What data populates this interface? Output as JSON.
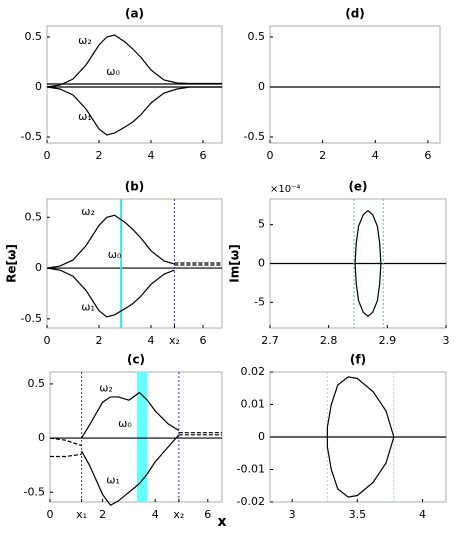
{
  "figure": {
    "xlabel": "x"
  },
  "chart_data": [
    {
      "type": "line",
      "title": "(a)",
      "xlim": [
        0,
        6.73
      ],
      "ylim": [
        -0.56,
        0.61
      ],
      "xticks": [
        0,
        2,
        4,
        6
      ],
      "yticks": [
        -0.5,
        0,
        0.5
      ],
      "hlines": [
        {
          "y": 0,
          "color": "#000000"
        },
        {
          "y": 0.03,
          "color": "#000000"
        }
      ],
      "series": [
        {
          "color": "#000000",
          "dash": false,
          "x": [
            0,
            0.5,
            1,
            1.5,
            2,
            2.3,
            2.6,
            3,
            3.3,
            3.6,
            4,
            4.5,
            5,
            5.5,
            6,
            6.73
          ],
          "values": [
            0.0,
            0.02,
            0.08,
            0.22,
            0.42,
            0.5,
            0.52,
            0.45,
            0.38,
            0.3,
            0.17,
            0.07,
            0.04,
            0.035,
            0.035,
            0.035
          ]
        },
        {
          "color": "#000000",
          "dash": false,
          "x": [
            0,
            0.5,
            1,
            1.5,
            2,
            2.3,
            2.6,
            3,
            3.3,
            3.6,
            4,
            4.5,
            5,
            5.5,
            6,
            6.73
          ],
          "values": [
            0.0,
            -0.02,
            -0.08,
            -0.22,
            -0.42,
            -0.48,
            -0.46,
            -0.4,
            -0.35,
            -0.28,
            -0.16,
            -0.06,
            -0.02,
            0.0,
            0.0,
            0.0
          ]
        }
      ],
      "annotations": [
        {
          "text": "ω₂",
          "x": 1.46,
          "y": 0.46
        },
        {
          "text": "ω₀",
          "x": 2.54,
          "y": 0.15
        },
        {
          "text": "ω₁",
          "x": 1.46,
          "y": -0.3
        }
      ]
    },
    {
      "type": "line",
      "title": "(b)",
      "ylabel": "Re[ω]",
      "xlim": [
        0,
        6.73
      ],
      "ylim": [
        -0.59,
        0.68
      ],
      "xticks": [
        0,
        2,
        4,
        {
          "value": 4.9,
          "label": "x₂"
        },
        6
      ],
      "yticks": [
        -0.5,
        0,
        0.5
      ],
      "hlines": [
        {
          "y": 0,
          "color": "#000000"
        }
      ],
      "vlines": [
        {
          "x": 2.85,
          "color": "#33e6f0",
          "dash": false
        },
        {
          "x": 4.9,
          "color": "#3333cc",
          "dash": true
        }
      ],
      "series": [
        {
          "color": "#000000",
          "dash": false,
          "x": [
            0,
            0.5,
            1,
            1.5,
            2,
            2.3,
            2.6,
            3,
            3.3,
            3.6,
            4,
            4.5,
            4.9
          ],
          "values": [
            0.0,
            0.02,
            0.08,
            0.22,
            0.42,
            0.5,
            0.52,
            0.45,
            0.38,
            0.3,
            0.17,
            0.07,
            0.04
          ]
        },
        {
          "color": "#000000",
          "dash": false,
          "x": [
            0,
            0.5,
            1,
            1.5,
            2,
            2.3,
            2.6,
            3,
            3.3,
            3.6,
            4,
            4.5,
            4.9
          ],
          "values": [
            0.0,
            -0.02,
            -0.08,
            -0.22,
            -0.42,
            -0.48,
            -0.46,
            -0.4,
            -0.35,
            -0.28,
            -0.16,
            -0.06,
            -0.02
          ]
        },
        {
          "color": "#000000",
          "dash": true,
          "x": [
            4.9,
            6.73
          ],
          "values": [
            0.05,
            0.05
          ]
        },
        {
          "color": "#000000",
          "dash": true,
          "x": [
            4.9,
            6.73
          ],
          "values": [
            0.03,
            0.03
          ]
        }
      ],
      "annotations": [
        {
          "text": "ω₂",
          "x": 1.58,
          "y": 0.55
        },
        {
          "text": "ω₀",
          "x": 2.6,
          "y": 0.13
        },
        {
          "text": "ω₁",
          "x": 1.58,
          "y": -0.39
        }
      ]
    },
    {
      "type": "line",
      "title": "(c)",
      "xlim": [
        0,
        6.54
      ],
      "ylim": [
        -0.59,
        0.61
      ],
      "xticks": [
        0,
        {
          "value": 1.2,
          "label": "x₁"
        },
        2,
        4,
        {
          "value": 4.9,
          "label": "x₂"
        },
        6
      ],
      "yticks": [
        -0.5,
        0,
        0.5
      ],
      "hlines": [
        {
          "y": 0,
          "color": "#000000"
        }
      ],
      "bands": [
        {
          "from": 3.3,
          "to": 3.7,
          "color": "#66ffff"
        }
      ],
      "vlines": [
        {
          "x": 1.2,
          "color": "#3333cc",
          "dash": true
        },
        {
          "x": 4.9,
          "color": "#3333cc",
          "dash": true
        }
      ],
      "series": [
        {
          "color": "#000000",
          "dash": false,
          "x": [
            1.2,
            1.5,
            2,
            2.3,
            2.6,
            3,
            3.4,
            3.7,
            4,
            4.5,
            4.9
          ],
          "values": [
            0.0,
            0.12,
            0.33,
            0.38,
            0.38,
            0.35,
            0.42,
            0.35,
            0.25,
            0.13,
            0.07
          ]
        },
        {
          "color": "#000000",
          "dash": false,
          "x": [
            1.2,
            1.5,
            2,
            2.3,
            2.6,
            3,
            3.4,
            3.7,
            4,
            4.5,
            4.9
          ],
          "values": [
            -0.12,
            -0.25,
            -0.52,
            -0.62,
            -0.58,
            -0.5,
            -0.42,
            -0.33,
            -0.22,
            -0.08,
            0.03
          ]
        },
        {
          "color": "#000000",
          "dash": true,
          "x": [
            0,
            0.6,
            1.2
          ],
          "values": [
            0.0,
            -0.02,
            -0.07
          ]
        },
        {
          "color": "#000000",
          "dash": true,
          "x": [
            0,
            0.6,
            1.2
          ],
          "values": [
            -0.17,
            -0.17,
            -0.15
          ]
        },
        {
          "color": "#000000",
          "dash": true,
          "x": [
            4.9,
            6.54
          ],
          "values": [
            0.05,
            0.05
          ]
        },
        {
          "color": "#000000",
          "dash": true,
          "x": [
            4.9,
            6.54
          ],
          "values": [
            0.03,
            0.03
          ]
        }
      ],
      "annotations": [
        {
          "text": "ω₂",
          "x": 2.13,
          "y": 0.46
        },
        {
          "text": "ω₀",
          "x": 2.85,
          "y": 0.13
        },
        {
          "text": "ω₁",
          "x": 2.4,
          "y": -0.39
        }
      ]
    },
    {
      "type": "line",
      "title": "(d)",
      "xlim": [
        0,
        6.46
      ],
      "ylim": [
        -0.56,
        0.61
      ],
      "xticks": [
        0,
        2,
        4,
        6
      ],
      "yticks": [
        -0.5,
        0,
        0.5
      ],
      "hlines": [
        {
          "y": 0,
          "color": "#000000"
        }
      ],
      "series": []
    },
    {
      "type": "line",
      "title": "(e)",
      "ylabel": "Im[ω]",
      "y_multiplier": "×10⁻⁴",
      "xlim": [
        2.7,
        3
      ],
      "ylim": [
        -8.3,
        8.3
      ],
      "xticks": [
        2.7,
        2.8,
        2.9,
        3
      ],
      "yticks": [
        -5,
        0,
        5
      ],
      "hlines": [
        {
          "y": 0,
          "color": "#000000"
        }
      ],
      "vlines": [
        {
          "x": 2.843,
          "color": "#33cccc",
          "dash": true
        },
        {
          "x": 2.893,
          "color": "#33cccc",
          "dash": true
        }
      ],
      "series": [
        {
          "color": "#000000",
          "dash": false,
          "x": [
            2.889,
            2.887,
            2.883,
            2.875,
            2.867,
            2.859,
            2.851,
            2.847,
            2.845,
            2.847,
            2.851,
            2.859,
            2.867,
            2.875,
            2.883,
            2.887,
            2.889
          ],
          "values": [
            0,
            2.6,
            4.81,
            6.28,
            6.8,
            6.28,
            4.81,
            2.6,
            0,
            -2.6,
            -4.81,
            -6.28,
            -6.8,
            -6.28,
            -4.81,
            -2.6,
            0
          ]
        }
      ]
    },
    {
      "type": "line",
      "title": "(f)",
      "xlim": [
        2.83,
        4.18
      ],
      "ylim": [
        -0.02,
        0.02
      ],
      "xticks": [
        3,
        3.5,
        4
      ],
      "yticks": [
        -0.02,
        -0.01,
        0,
        0.01,
        0.02
      ],
      "hlines": [
        {
          "y": 0,
          "color": "#000000"
        }
      ],
      "vlines": [
        {
          "x": 3.27,
          "color": "#99dddd",
          "dash": true
        },
        {
          "x": 3.78,
          "color": "#99dddd",
          "dash": true
        }
      ],
      "series": [
        {
          "color": "#000000",
          "dash": false,
          "x": [
            3.78,
            3.72,
            3.62,
            3.5,
            3.43,
            3.35,
            3.3,
            3.27,
            3.27,
            3.3,
            3.35,
            3.43,
            3.5,
            3.62,
            3.72,
            3.78
          ],
          "values": [
            0,
            0.008,
            0.014,
            0.018,
            0.0185,
            0.016,
            0.01,
            0.003,
            -0.003,
            -0.01,
            -0.016,
            -0.0185,
            -0.018,
            -0.014,
            -0.008,
            0
          ]
        }
      ]
    }
  ]
}
